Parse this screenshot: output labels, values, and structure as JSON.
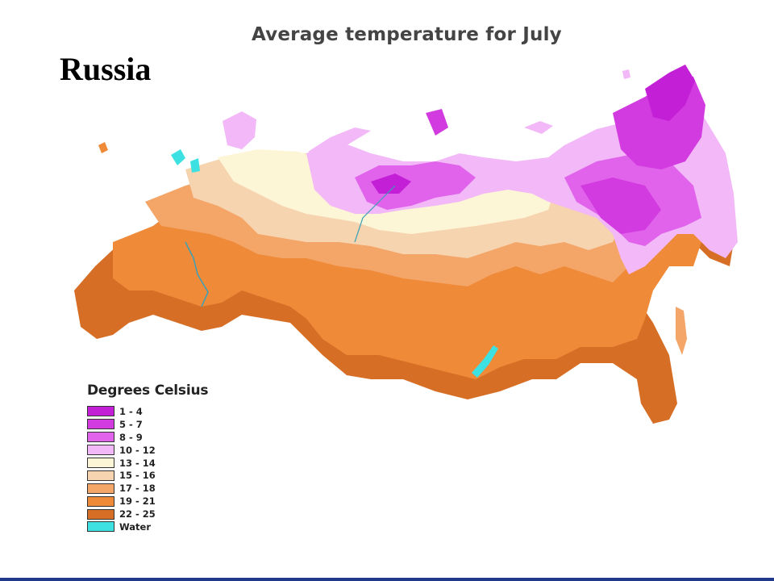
{
  "page_title": "Russia",
  "map_title": "Average temperature for July",
  "legend": {
    "title": "Degrees Celsius",
    "items": [
      {
        "label": "1 - 4",
        "color": "#c31fd6"
      },
      {
        "label": "5 - 7",
        "color": "#d23be0"
      },
      {
        "label": "8 - 9",
        "color": "#e162eb"
      },
      {
        "label": "10 - 12",
        "color": "#f2b8f7"
      },
      {
        "label": "13 - 14",
        "color": "#fdf6d6"
      },
      {
        "label": "15 - 16",
        "color": "#f7d4b0"
      },
      {
        "label": "17 - 18",
        "color": "#f4a568"
      },
      {
        "label": "19 - 21",
        "color": "#ee8a38"
      },
      {
        "label": "22 - 25",
        "color": "#d66e26"
      },
      {
        "label": "Water",
        "color": "#3ee1e1"
      }
    ]
  },
  "colors": {
    "water": "#3ee1e1",
    "footer_bar": "#1f3a8a"
  }
}
